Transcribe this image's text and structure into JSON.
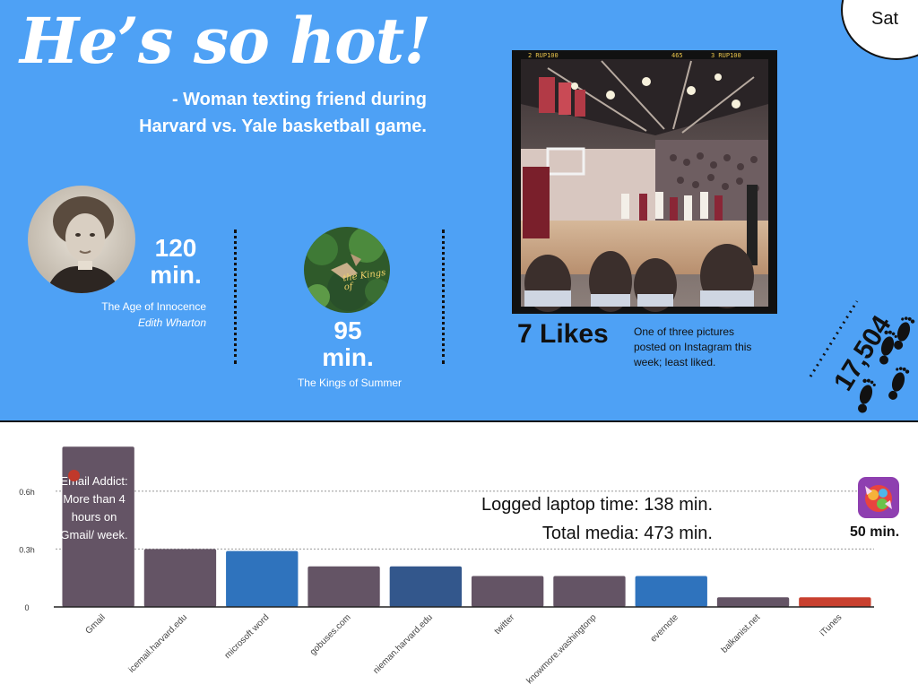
{
  "headline": "He’s so hot!",
  "quote": {
    "line1": "- Woman texting friend during",
    "line2": "Harvard vs. Yale basketball game."
  },
  "day": "Sat",
  "book": {
    "minutes_line1": "120",
    "minutes_line2": "min.",
    "title": "The Age of Innocence",
    "author": "Edith Wharton",
    "icon": "portrait-photo"
  },
  "film": {
    "minutes_line1": "95",
    "minutes_line2": "min.",
    "title": "The Kings of Summer",
    "poster_text": "the Kings of",
    "icon": "movie-poster"
  },
  "instagram": {
    "likes": "7 Likes",
    "note": "One of three pictures posted on Instagram this week; least liked.",
    "scoreboard_left": "2  RUP100",
    "scoreboard_mid": "465",
    "scoreboard_right": "3  RUP100"
  },
  "steps": {
    "count": "17,504",
    "icon": "footprints-icon"
  },
  "laptop": {
    "logged": "Logged laptop time: 138 min.",
    "total": "Total media: 473 min."
  },
  "game": {
    "minutes": "50 min.",
    "icon": "candy-crush-icon"
  },
  "gmail_note": "Email Addict: More than 4 hours on Gmail/ week.",
  "colors": {
    "sky": "#4ea1f5",
    "bar_default": "#645465",
    "bar_blue": "#2f73bd",
    "bar_navy": "#33578c",
    "bar_red": "#c8402f"
  },
  "chart_data": {
    "type": "bar",
    "categories": [
      "Gmail",
      "icemail.harvard.edu",
      "microsoft word",
      "gobuses.com",
      "nieman.harvard.edu",
      "twitter",
      "knowmore.washingtonp",
      "evernote",
      "balkanist.net",
      "iTunes"
    ],
    "values": [
      0.83,
      0.3,
      0.29,
      0.21,
      0.21,
      0.16,
      0.16,
      0.16,
      0.05,
      0.05
    ],
    "bar_colors": [
      "#645465",
      "#645465",
      "#2f73bd",
      "#645465",
      "#33578c",
      "#645465",
      "#645465",
      "#2f73bd",
      "#645465",
      "#c8402f"
    ],
    "yticks": [
      {
        "value": 0,
        "label": "0"
      },
      {
        "value": 0.3,
        "label": "0.3h"
      },
      {
        "value": 0.6,
        "label": "0.6h"
      }
    ],
    "ylim": [
      0,
      0.85
    ],
    "grid": true,
    "title": "",
    "xlabel": "",
    "ylabel": ""
  }
}
